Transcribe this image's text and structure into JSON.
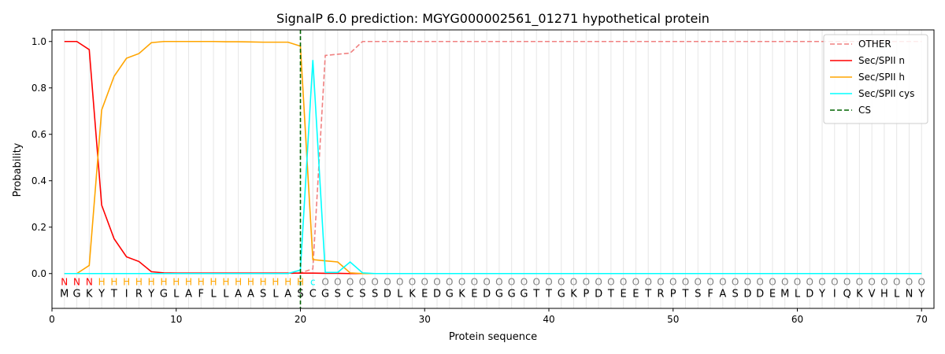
{
  "chart_data": {
    "type": "line",
    "title": "SignalP 6.0 prediction: MGYG000002561_01271 hypothetical protein",
    "xlabel": "Protein sequence",
    "ylabel": "Probability",
    "xlim": [
      0,
      71
    ],
    "ylim": [
      -0.15,
      1.05
    ],
    "x_ticks": [
      0,
      10,
      20,
      30,
      40,
      50,
      60,
      70
    ],
    "y_ticks": [
      0.0,
      0.2,
      0.4,
      0.6,
      0.8,
      1.0
    ],
    "x_tick_labels": [
      "0",
      "10",
      "20",
      "30",
      "40",
      "50",
      "60",
      "70"
    ],
    "y_tick_labels": [
      "0.0",
      "0.2",
      "0.4",
      "0.6",
      "0.8",
      "1.0"
    ],
    "grid": "vertical lines at each residue",
    "legend_position": "top-right",
    "sequence": [
      "M",
      "G",
      "K",
      "Y",
      "T",
      "I",
      "R",
      "Y",
      "G",
      "L",
      "A",
      "F",
      "L",
      "L",
      "A",
      "A",
      "S",
      "L",
      "A",
      "S",
      "C",
      "G",
      "S",
      "C",
      "S",
      "S",
      "D",
      "L",
      "K",
      "E",
      "D",
      "G",
      "K",
      "E",
      "D",
      "G",
      "G",
      "G",
      "T",
      "T",
      "G",
      "K",
      "P",
      "D",
      "T",
      "E",
      "E",
      "T",
      "R",
      "P",
      "T",
      "S",
      "F",
      "A",
      "S",
      "D",
      "D",
      "E",
      "M",
      "L",
      "D",
      "Y",
      "I",
      "Q",
      "K",
      "V",
      "H",
      "L",
      "N",
      "Y"
    ],
    "labels": [
      "N",
      "N",
      "N",
      "H",
      "H",
      "H",
      "H",
      "H",
      "H",
      "H",
      "H",
      "H",
      "H",
      "H",
      "H",
      "H",
      "H",
      "H",
      "H",
      "H",
      "c",
      "O",
      "O",
      "O",
      "O",
      "O",
      "O",
      "O",
      "O",
      "O",
      "O",
      "O",
      "O",
      "O",
      "O",
      "O",
      "O",
      "O",
      "O",
      "O",
      "O",
      "O",
      "O",
      "O",
      "O",
      "O",
      "O",
      "O",
      "O",
      "O",
      "O",
      "O",
      "O",
      "O",
      "O",
      "O",
      "O",
      "O",
      "O",
      "O",
      "O",
      "O",
      "O",
      "O",
      "O",
      "O",
      "O",
      "O",
      "O",
      "O"
    ],
    "label_colors": {
      "N": "#ff0000",
      "H": "#ffa500",
      "c": "#00ffff",
      "O": "#808080"
    },
    "cs_position": 20,
    "series": [
      {
        "name": "OTHER",
        "color": "#f08080",
        "dash": "dashed",
        "values": [
          0,
          0,
          0,
          0,
          0,
          0,
          0,
          0,
          0,
          0,
          0,
          0,
          0,
          0,
          0,
          0,
          0,
          0,
          0,
          0.003,
          0.02,
          0.94,
          0.945,
          0.95,
          1.0,
          1.0,
          1.0,
          1.0,
          1.0,
          1.0,
          1.0,
          1.0,
          1.0,
          1.0,
          1.0,
          1.0,
          1.0,
          1.0,
          1.0,
          1.0,
          1.0,
          1.0,
          1.0,
          1.0,
          1.0,
          1.0,
          1.0,
          1.0,
          1.0,
          1.0,
          1.0,
          1.0,
          1.0,
          1.0,
          1.0,
          1.0,
          1.0,
          1.0,
          1.0,
          1.0,
          1.0,
          1.0,
          1.0,
          1.0,
          1.0,
          1.0,
          1.0,
          1.0,
          1.0,
          1.0
        ]
      },
      {
        "name": "Sec/SPII n",
        "color": "#ff0000",
        "dash": "solid",
        "values": [
          1.0,
          1.0,
          0.965,
          0.295,
          0.15,
          0.072,
          0.052,
          0.008,
          0.003,
          0.002,
          0.002,
          0.002,
          0.002,
          0.002,
          0.002,
          0.002,
          0.002,
          0.002,
          0.002,
          0.002,
          0.002,
          0.001,
          0.001,
          0,
          0,
          0,
          0,
          0,
          0,
          0,
          0,
          0,
          0,
          0,
          0,
          0,
          0,
          0,
          0,
          0,
          0,
          0,
          0,
          0,
          0,
          0,
          0,
          0,
          0,
          0,
          0,
          0,
          0,
          0,
          0,
          0,
          0,
          0,
          0,
          0,
          0,
          0,
          0,
          0,
          0,
          0,
          0,
          0,
          0,
          0
        ]
      },
      {
        "name": "Sec/SPII h",
        "color": "#ffa500",
        "dash": "solid",
        "values": [
          0,
          0,
          0.035,
          0.705,
          0.85,
          0.928,
          0.948,
          0.995,
          1.0,
          1.0,
          1.0,
          1.0,
          1.0,
          0.999,
          0.999,
          0.998,
          0.997,
          0.997,
          0.997,
          0.98,
          0.06,
          0.055,
          0.05,
          0.003,
          0,
          0,
          0,
          0,
          0,
          0,
          0,
          0,
          0,
          0,
          0,
          0,
          0,
          0,
          0,
          0,
          0,
          0,
          0,
          0,
          0,
          0,
          0,
          0,
          0,
          0,
          0,
          0,
          0,
          0,
          0,
          0,
          0,
          0,
          0,
          0,
          0,
          0,
          0,
          0,
          0,
          0,
          0,
          0,
          0,
          0
        ]
      },
      {
        "name": "Sec/SPII cys",
        "color": "#00ffff",
        "dash": "solid",
        "values": [
          0,
          0,
          0,
          0,
          0,
          0,
          0,
          0,
          0,
          0,
          0,
          0,
          0,
          0,
          0,
          0,
          0,
          0,
          0,
          0.015,
          0.92,
          0.005,
          0.005,
          0.05,
          0.003,
          0,
          0,
          0,
          0,
          0,
          0,
          0,
          0,
          0,
          0,
          0,
          0,
          0,
          0,
          0,
          0,
          0,
          0,
          0,
          0,
          0,
          0,
          0,
          0,
          0,
          0,
          0,
          0,
          0,
          0,
          0,
          0,
          0,
          0,
          0,
          0,
          0,
          0,
          0,
          0,
          0,
          0,
          0,
          0,
          0
        ]
      }
    ],
    "cs_legend": {
      "name": "CS",
      "color": "#006400"
    }
  }
}
